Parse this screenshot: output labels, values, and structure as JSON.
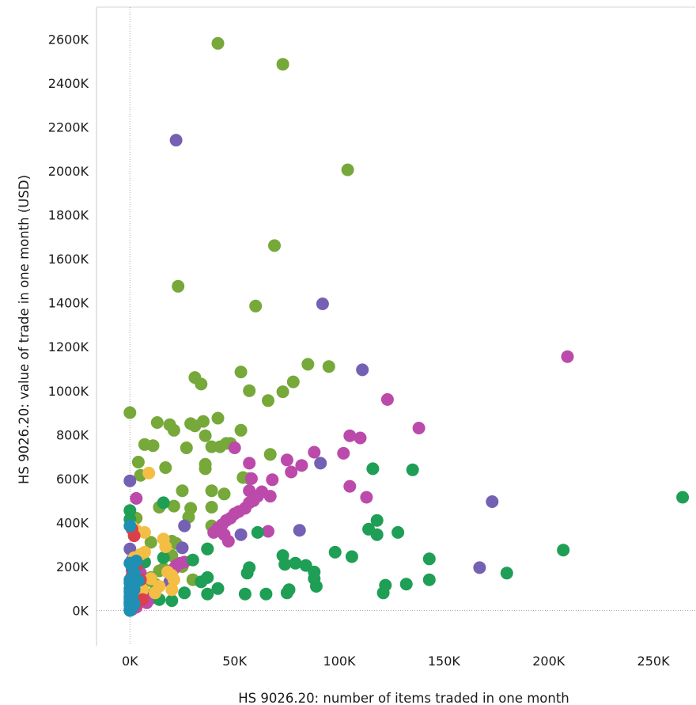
{
  "chart_data": {
    "type": "scatter",
    "title": "",
    "xlabel": "HS 9026.20: number of items traded in one month",
    "ylabel": "HS 9026.20: value of trade in one month (USD)",
    "xlim": [
      -16000,
      270000
    ],
    "ylim": [
      -160000,
      2745000
    ],
    "x_ticks": [
      0,
      50000,
      100000,
      150000,
      200000,
      250000
    ],
    "x_tick_labels": [
      "0K",
      "50K",
      "100K",
      "150K",
      "200K",
      "250K"
    ],
    "y_ticks": [
      0,
      200000,
      400000,
      600000,
      800000,
      1000000,
      1200000,
      1400000,
      1600000,
      1800000,
      2000000,
      2200000,
      2400000,
      2600000
    ],
    "y_tick_labels": [
      "0K",
      "200K",
      "400K",
      "600K",
      "800K",
      "1000K",
      "1200K",
      "1400K",
      "1600K",
      "1800K",
      "2000K",
      "2200K",
      "2400K",
      "2600K"
    ],
    "grid": false,
    "zero_lines": true,
    "legend": "none",
    "series": [
      {
        "color": "#76a83a",
        "points": [
          [
            42000,
            2580000
          ],
          [
            73000,
            2485000
          ],
          [
            104000,
            2005000
          ],
          [
            69000,
            1660000
          ],
          [
            23000,
            1475000
          ],
          [
            60000,
            1385000
          ],
          [
            85000,
            1120000
          ],
          [
            95000,
            1110000
          ],
          [
            53000,
            1085000
          ],
          [
            31000,
            1060000
          ],
          [
            34000,
            1030000
          ],
          [
            57000,
            1000000
          ],
          [
            73000,
            995000
          ],
          [
            78000,
            1040000
          ],
          [
            66000,
            955000
          ],
          [
            0,
            900000
          ],
          [
            42000,
            875000
          ],
          [
            13000,
            855000
          ],
          [
            29000,
            850000
          ],
          [
            35000,
            860000
          ],
          [
            19000,
            845000
          ],
          [
            21000,
            820000
          ],
          [
            31000,
            840000
          ],
          [
            53000,
            820000
          ],
          [
            36000,
            795000
          ],
          [
            7000,
            755000
          ],
          [
            11000,
            750000
          ],
          [
            27000,
            740000
          ],
          [
            39000,
            745000
          ],
          [
            43000,
            745000
          ],
          [
            46000,
            760000
          ],
          [
            48000,
            760000
          ],
          [
            67000,
            710000
          ],
          [
            4000,
            675000
          ],
          [
            17000,
            650000
          ],
          [
            36000,
            665000
          ],
          [
            36000,
            645000
          ],
          [
            5000,
            615000
          ],
          [
            54000,
            605000
          ],
          [
            57000,
            600000
          ],
          [
            25000,
            545000
          ],
          [
            39000,
            545000
          ],
          [
            45000,
            530000
          ],
          [
            14000,
            470000
          ],
          [
            21000,
            475000
          ],
          [
            29000,
            465000
          ],
          [
            39000,
            470000
          ],
          [
            3000,
            420000
          ],
          [
            28000,
            425000
          ],
          [
            39000,
            385000
          ],
          [
            10000,
            310000
          ],
          [
            20000,
            315000
          ],
          [
            22000,
            305000
          ],
          [
            20000,
            250000
          ],
          [
            37000,
            280000
          ],
          [
            14000,
            180000
          ],
          [
            16000,
            190000
          ],
          [
            25000,
            200000
          ],
          [
            8000,
            135000
          ],
          [
            30000,
            140000
          ],
          [
            10000,
            150000
          ],
          [
            12000,
            120000
          ],
          [
            3000,
            60000
          ],
          [
            5000,
            90000
          ],
          [
            8000,
            75000
          ]
        ]
      },
      {
        "color": "#bb4aaa",
        "points": [
          [
            209000,
            1155000
          ],
          [
            123000,
            960000
          ],
          [
            138000,
            830000
          ],
          [
            105000,
            795000
          ],
          [
            110000,
            785000
          ],
          [
            102000,
            715000
          ],
          [
            88000,
            720000
          ],
          [
            75000,
            685000
          ],
          [
            82000,
            660000
          ],
          [
            77000,
            630000
          ],
          [
            57000,
            670000
          ],
          [
            50000,
            740000
          ],
          [
            58000,
            600000
          ],
          [
            68000,
            595000
          ],
          [
            105000,
            565000
          ],
          [
            113000,
            515000
          ],
          [
            57000,
            545000
          ],
          [
            63000,
            540000
          ],
          [
            67000,
            520000
          ],
          [
            61000,
            520000
          ],
          [
            59000,
            500000
          ],
          [
            57000,
            490000
          ],
          [
            55000,
            465000
          ],
          [
            52000,
            450000
          ],
          [
            50000,
            440000
          ],
          [
            48000,
            420000
          ],
          [
            46000,
            410000
          ],
          [
            44000,
            390000
          ],
          [
            42000,
            375000
          ],
          [
            40000,
            355000
          ],
          [
            45000,
            345000
          ],
          [
            47000,
            315000
          ],
          [
            66000,
            360000
          ],
          [
            3000,
            510000
          ],
          [
            26000,
            220000
          ],
          [
            24000,
            215000
          ],
          [
            22000,
            205000
          ],
          [
            21000,
            190000
          ],
          [
            1000,
            230000
          ],
          [
            2000,
            205000
          ],
          [
            5000,
            170000
          ],
          [
            3000,
            95000
          ],
          [
            6000,
            80000
          ],
          [
            10000,
            55000
          ],
          [
            8000,
            35000
          ],
          [
            3000,
            15000
          ],
          [
            1000,
            5000
          ]
        ]
      },
      {
        "color": "#7461b3",
        "points": [
          [
            22000,
            2140000
          ],
          [
            92000,
            1395000
          ],
          [
            111000,
            1095000
          ],
          [
            91000,
            670000
          ],
          [
            173000,
            495000
          ],
          [
            0,
            590000
          ],
          [
            81000,
            365000
          ],
          [
            53000,
            345000
          ],
          [
            26000,
            385000
          ],
          [
            167000,
            195000
          ],
          [
            25000,
            285000
          ],
          [
            0,
            280000
          ],
          [
            19000,
            130000
          ],
          [
            2000,
            245000
          ],
          [
            1000,
            185000
          ],
          [
            4000,
            120000
          ],
          [
            2000,
            60000
          ],
          [
            0,
            40000
          ],
          [
            1000,
            20000
          ]
        ]
      },
      {
        "color": "#1f9e56",
        "points": [
          [
            264000,
            515000
          ],
          [
            207000,
            275000
          ],
          [
            180000,
            170000
          ],
          [
            135000,
            640000
          ],
          [
            116000,
            645000
          ],
          [
            118000,
            410000
          ],
          [
            114000,
            370000
          ],
          [
            118000,
            345000
          ],
          [
            128000,
            355000
          ],
          [
            98000,
            265000
          ],
          [
            106000,
            245000
          ],
          [
            73000,
            250000
          ],
          [
            74000,
            210000
          ],
          [
            79000,
            215000
          ],
          [
            84000,
            205000
          ],
          [
            88000,
            175000
          ],
          [
            88000,
            145000
          ],
          [
            89000,
            110000
          ],
          [
            76000,
            95000
          ],
          [
            75000,
            80000
          ],
          [
            65000,
            75000
          ],
          [
            55000,
            75000
          ],
          [
            57000,
            195000
          ],
          [
            56000,
            170000
          ],
          [
            61000,
            355000
          ],
          [
            37000,
            280000
          ],
          [
            37000,
            150000
          ],
          [
            34000,
            130000
          ],
          [
            37000,
            75000
          ],
          [
            42000,
            100000
          ],
          [
            30000,
            230000
          ],
          [
            26000,
            80000
          ],
          [
            20000,
            45000
          ],
          [
            14000,
            50000
          ],
          [
            16000,
            240000
          ],
          [
            16000,
            490000
          ],
          [
            143000,
            235000
          ],
          [
            143000,
            140000
          ],
          [
            132000,
            120000
          ],
          [
            122000,
            115000
          ],
          [
            121000,
            80000
          ],
          [
            7000,
            220000
          ],
          [
            0,
            455000
          ],
          [
            0,
            415000
          ]
        ]
      },
      {
        "color": "#f4be45",
        "points": [
          [
            9000,
            625000
          ],
          [
            1000,
            380000
          ],
          [
            3000,
            365000
          ],
          [
            7000,
            355000
          ],
          [
            16000,
            325000
          ],
          [
            17000,
            290000
          ],
          [
            7000,
            265000
          ],
          [
            5000,
            255000
          ],
          [
            2000,
            240000
          ],
          [
            18000,
            175000
          ],
          [
            20000,
            160000
          ],
          [
            21000,
            140000
          ],
          [
            10000,
            145000
          ],
          [
            14000,
            110000
          ],
          [
            6000,
            95000
          ],
          [
            12000,
            80000
          ],
          [
            20000,
            95000
          ],
          [
            4000,
            70000
          ],
          [
            3000,
            40000
          ],
          [
            2000,
            25000
          ],
          [
            1000,
            55000
          ]
        ]
      },
      {
        "color": "#d9404c",
        "points": [
          [
            1000,
            370000
          ],
          [
            2000,
            340000
          ],
          [
            3000,
            205000
          ],
          [
            1000,
            160000
          ],
          [
            5000,
            140000
          ],
          [
            1000,
            100000
          ],
          [
            6000,
            50000
          ],
          [
            3000,
            30000
          ],
          [
            1000,
            15000
          ]
        ]
      },
      {
        "color": "#1f8fb4",
        "points": [
          [
            0,
            385000
          ],
          [
            0,
            215000
          ],
          [
            1000,
            200000
          ],
          [
            3000,
            225000
          ],
          [
            2000,
            170000
          ],
          [
            0,
            140000
          ],
          [
            4000,
            135000
          ],
          [
            0,
            125000
          ],
          [
            1000,
            115000
          ],
          [
            0,
            100000
          ],
          [
            2000,
            95000
          ],
          [
            0,
            85000
          ],
          [
            1000,
            75000
          ],
          [
            0,
            65000
          ],
          [
            0,
            55000
          ],
          [
            1000,
            45000
          ],
          [
            0,
            35000
          ],
          [
            0,
            25000
          ],
          [
            1000,
            15000
          ],
          [
            0,
            5000
          ],
          [
            0,
            0
          ],
          [
            2000,
            30000
          ],
          [
            1000,
            60000
          ]
        ]
      }
    ]
  }
}
